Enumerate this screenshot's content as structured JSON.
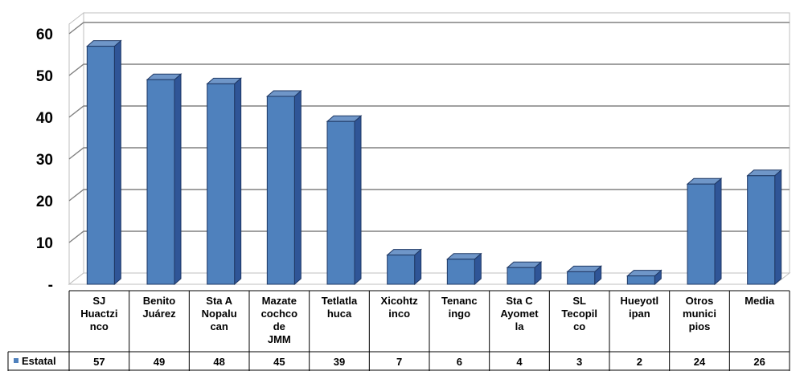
{
  "chart_data": {
    "type": "bar",
    "categories": [
      [
        "SJ",
        "Huactzi",
        "nco"
      ],
      [
        "Benito",
        "Juárez"
      ],
      [
        "Sta A",
        "Nopalu",
        "can"
      ],
      [
        "Mazate",
        "cochco",
        "de",
        "JMM"
      ],
      [
        "Tetlatla",
        "huca"
      ],
      [
        "Xicohtz",
        "inco"
      ],
      [
        "Tenanc",
        "ingo"
      ],
      [
        "Sta C",
        "Ayomet",
        "la"
      ],
      [
        "SL",
        "Tecopil",
        "co"
      ],
      [
        "Hueyotl",
        "ipan"
      ],
      [
        "Otros",
        "munici",
        "pios"
      ],
      [
        "Media"
      ]
    ],
    "series": [
      {
        "name": "Estatal",
        "values": [
          57,
          49,
          48,
          45,
          39,
          7,
          6,
          4,
          3,
          2,
          24,
          26
        ]
      }
    ],
    "value_labels": [
      "57",
      "49",
      "48",
      "45",
      "39",
      "7",
      "6",
      "4",
      "3",
      "2",
      "24",
      "26"
    ],
    "yticks": [
      {
        "value": 0,
        "label": "-"
      },
      {
        "value": 10,
        "label": "10"
      },
      {
        "value": 20,
        "label": "20"
      },
      {
        "value": 30,
        "label": "30"
      },
      {
        "value": 40,
        "label": "40"
      },
      {
        "value": 50,
        "label": "50"
      },
      {
        "value": 60,
        "label": "60"
      }
    ],
    "ylim": [
      0,
      60
    ],
    "grid": true,
    "data_table": true,
    "legend_marker_color": "#4F81BD",
    "bar_front_color": "#4F81BD",
    "bar_side_color": "#2F5597",
    "bar_top_color": "#6F96C8"
  }
}
